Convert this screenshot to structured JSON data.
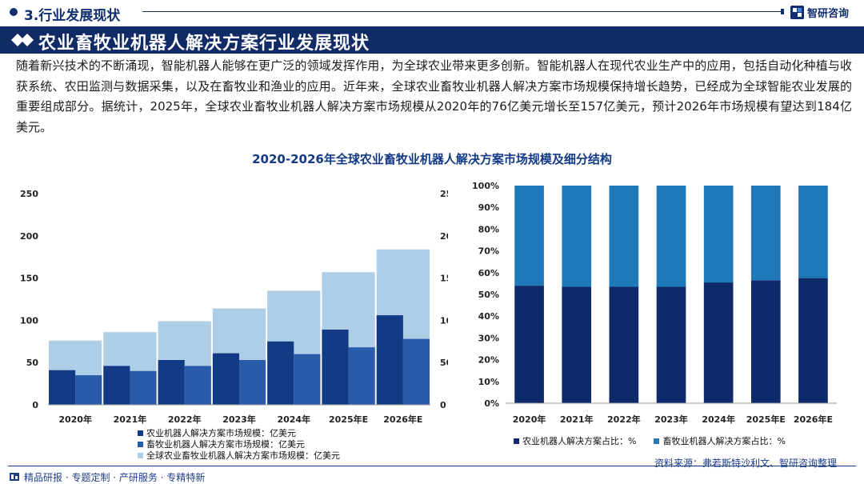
{
  "header": {
    "section_title": "3.行业发展现状",
    "brand": "智研咨询"
  },
  "banner": {
    "title": "农业畜牧业机器人解决方案行业发展现状"
  },
  "intro": "随着新兴技术的不断涌现，智能机器人能够在更广泛的领域发挥作用，为全球农业带来更多创新。智能机器人在现代农业生产中的应用，包括自动化种植与收获系统、农田监测与数据采集，以及在畜牧业和渔业的应用。近年来，全球农业畜牧业机器人解决方案市场规模保持增长趋势，已经成为全球智能农业发展的重要组成部分。据统计，2025年，全球农业畜牧业机器人解决方案市场规模从2020年的76亿美元增长至157亿美元，预计2026年市场规模有望达到184亿美元。",
  "chart_title": "2020-2026年全球农业畜牧业机器人解决方案市场规模及细分结构",
  "chart_data": [
    {
      "type": "bar",
      "categories": [
        "2020年",
        "2021年",
        "2022年",
        "2023年",
        "2024年",
        "2025年E",
        "2026年E"
      ],
      "ylim": [
        0,
        250
      ],
      "yticks": [
        0,
        50,
        100,
        150,
        200,
        250
      ],
      "series": [
        {
          "name": "农业机器人解决方案市场规模：亿美元",
          "values": [
            41,
            46,
            53,
            61,
            75,
            89,
            106
          ],
          "color": "#123a85"
        },
        {
          "name": "畜牧业机器人解决方案市场规模：亿美元",
          "values": [
            35,
            40,
            46,
            53,
            60,
            68,
            78
          ],
          "color": "#2a5ba8"
        },
        {
          "name": "全球农业畜牧业机器人解决方案市场规模：亿美元",
          "values": [
            76,
            86,
            99,
            114,
            135,
            157,
            184
          ],
          "color": "#aecde6"
        }
      ]
    },
    {
      "type": "bar",
      "stacked": true,
      "percent": true,
      "categories": [
        "2020年",
        "2021年",
        "2022年",
        "2023年",
        "2024年",
        "2025年E",
        "2026年E"
      ],
      "ylim": [
        0,
        100
      ],
      "yticks": [
        "0%",
        "10%",
        "20%",
        "30%",
        "40%",
        "50%",
        "60%",
        "70%",
        "80%",
        "90%",
        "100%"
      ],
      "series": [
        {
          "name": "农业机器人解决方案占比：%",
          "values": [
            54,
            53.5,
            53.5,
            53.5,
            55.5,
            56.5,
            57.5
          ],
          "color": "#0f2a6b"
        },
        {
          "name": "畜牧业机器人解决方案占比：%",
          "values": [
            46,
            46.5,
            46.5,
            46.5,
            44.5,
            43.5,
            42.5
          ],
          "color": "#1f78b8"
        }
      ]
    }
  ],
  "source": "资料来源：弗若斯特沙利文、智研咨询整理",
  "footer": "精品研报 · 专题定制 · 产研服务 · 专精特新"
}
